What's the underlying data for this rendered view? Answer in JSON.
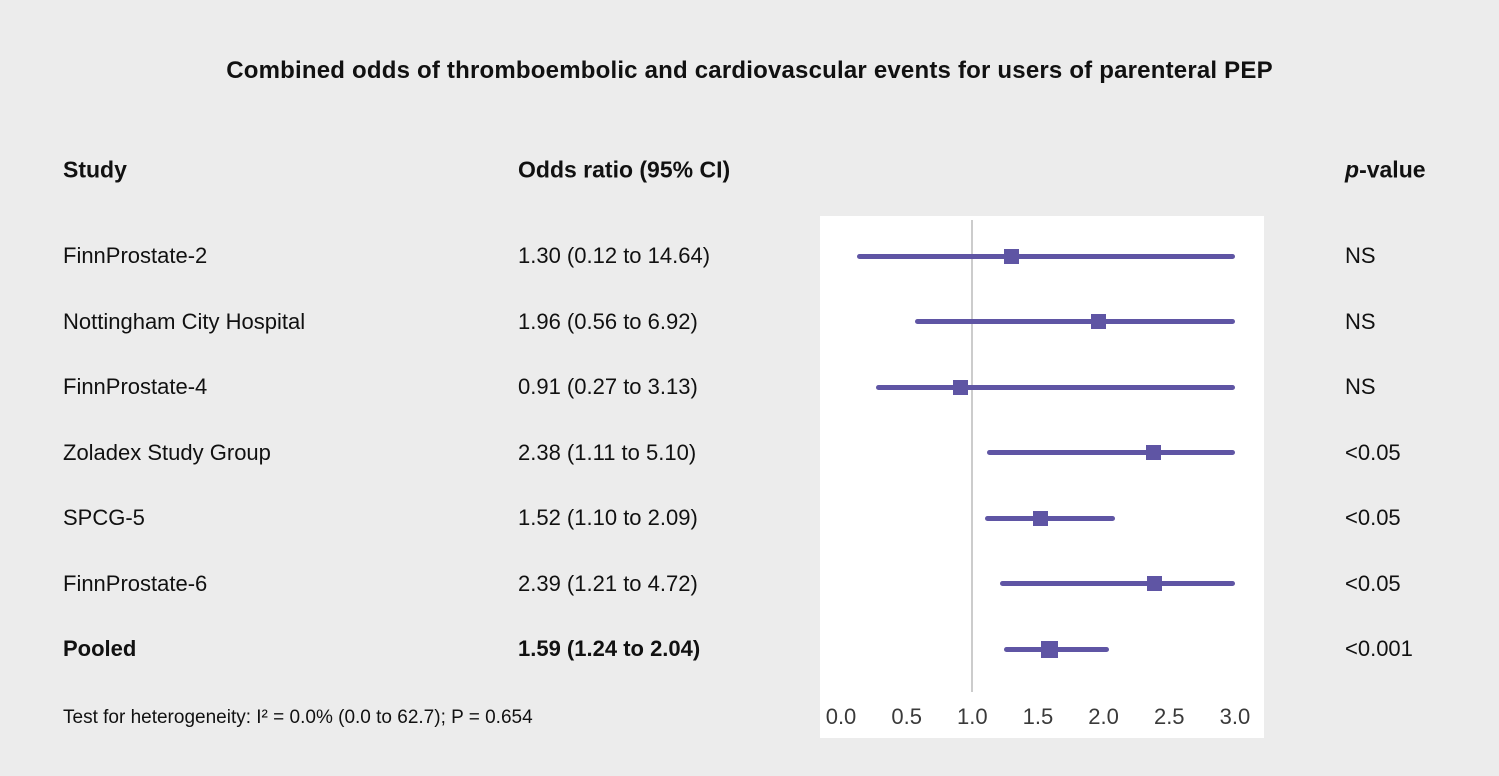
{
  "title": "Combined odds of thromboembolic and cardiovascular events for users of parenteral PEP",
  "columns": {
    "study": "Study",
    "odds_ratio": "Odds ratio (95% CI)",
    "p_italic": "p",
    "p_rest": "-value"
  },
  "footnote": "Test for heterogeneity: I² = 0.0% (0.0 to 62.7); P = 0.654",
  "colors": {
    "page_background": "#ececec",
    "plot_background": "#ffffff",
    "reference_line": "#cccccc",
    "marker": "#5f55a4",
    "text": "#111111"
  },
  "chart_data": {
    "type": "forest",
    "title": "Combined odds of thromboembolic and cardiovascular events for users of parenteral PEP",
    "x_axis": {
      "range": [
        0.0,
        3.0
      ],
      "tick_values": [
        0.0,
        0.5,
        1.0,
        1.5,
        2.0,
        2.5,
        3.0
      ],
      "ticks": [
        "0.0",
        "0.5",
        "1.0",
        "1.5",
        "2.0",
        "2.5",
        "3.0"
      ],
      "reference_line": 1.0,
      "clip_max": 3.0
    },
    "rows": [
      {
        "study": "FinnProstate-2",
        "or_label": "1.30 (0.12 to 14.64)",
        "or": 1.3,
        "ci_low": 0.12,
        "ci_high": 14.64,
        "p_value": "NS",
        "bold": false
      },
      {
        "study": "Nottingham City Hospital",
        "or_label": "1.96 (0.56 to 6.92)",
        "or": 1.96,
        "ci_low": 0.56,
        "ci_high": 6.92,
        "p_value": "NS",
        "bold": false
      },
      {
        "study": "FinnProstate-4",
        "or_label": "0.91 (0.27 to 3.13)",
        "or": 0.91,
        "ci_low": 0.27,
        "ci_high": 3.13,
        "p_value": "NS",
        "bold": false
      },
      {
        "study": "Zoladex Study Group",
        "or_label": "2.38 (1.11 to 5.10)",
        "or": 2.38,
        "ci_low": 1.11,
        "ci_high": 5.1,
        "p_value": "<0.05",
        "bold": false
      },
      {
        "study": "SPCG-5",
        "or_label": "1.52 (1.10 to 2.09)",
        "or": 1.52,
        "ci_low": 1.1,
        "ci_high": 2.09,
        "p_value": "<0.05",
        "bold": false
      },
      {
        "study": "FinnProstate-6",
        "or_label": "2.39 (1.21 to 4.72)",
        "or": 2.39,
        "ci_low": 1.21,
        "ci_high": 4.72,
        "p_value": "<0.05",
        "bold": false
      },
      {
        "study": "Pooled",
        "or_label": "1.59 (1.24 to 2.04)",
        "or": 1.59,
        "ci_low": 1.24,
        "ci_high": 2.04,
        "p_value": "<0.001",
        "bold": true
      }
    ]
  }
}
